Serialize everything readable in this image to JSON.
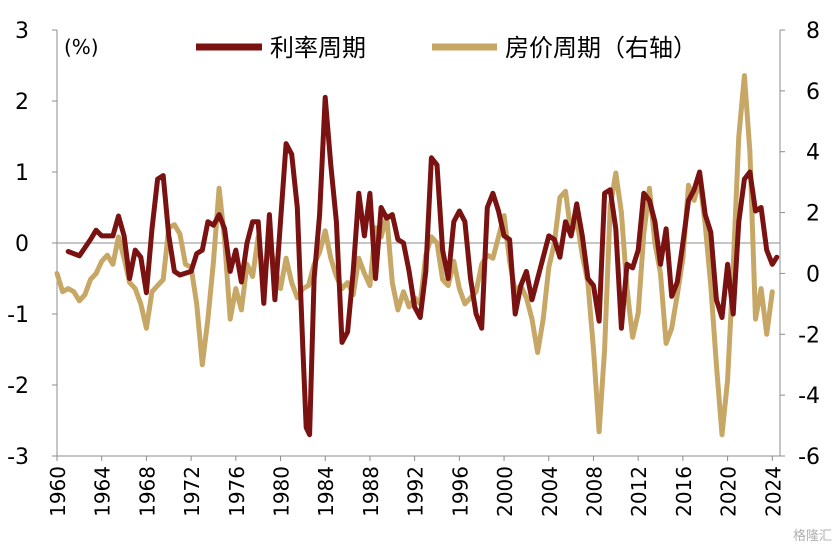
{
  "chart_data": {
    "type": "line",
    "unit_label": "(%)",
    "x_range": [
      1960,
      2024.6
    ],
    "x_ticks": [
      1960,
      1964,
      1968,
      1972,
      1976,
      1980,
      1984,
      1988,
      1992,
      1996,
      2000,
      2004,
      2008,
      2012,
      2016,
      2020,
      2024
    ],
    "y_left": {
      "range": [
        -3,
        3
      ],
      "ticks": [
        -3,
        -2,
        -1,
        0,
        1,
        2,
        3
      ]
    },
    "y_right": {
      "range": [
        -6,
        8
      ],
      "ticks": [
        -6,
        -4,
        -2,
        0,
        2,
        4,
        6,
        8
      ]
    },
    "grid": false,
    "zero_line": true,
    "legend_position": "top",
    "series": [
      {
        "name": "利率周期",
        "axis": "left",
        "color": "#7a1212",
        "points": [
          [
            1961.0,
            -0.12
          ],
          [
            1962.0,
            -0.18
          ],
          [
            1963.0,
            0.05
          ],
          [
            1963.5,
            0.18
          ],
          [
            1964.0,
            0.1
          ],
          [
            1965.0,
            0.1
          ],
          [
            1965.5,
            0.38
          ],
          [
            1966.0,
            0.1
          ],
          [
            1966.5,
            -0.5
          ],
          [
            1967.0,
            -0.1
          ],
          [
            1967.5,
            -0.2
          ],
          [
            1968.0,
            -0.7
          ],
          [
            1968.5,
            0.2
          ],
          [
            1969.0,
            0.9
          ],
          [
            1969.5,
            0.95
          ],
          [
            1970.0,
            0.1
          ],
          [
            1970.5,
            -0.4
          ],
          [
            1971.0,
            -0.45
          ],
          [
            1972.0,
            -0.4
          ],
          [
            1972.5,
            -0.15
          ],
          [
            1973.0,
            -0.1
          ],
          [
            1973.5,
            0.3
          ],
          [
            1974.0,
            0.25
          ],
          [
            1974.5,
            0.4
          ],
          [
            1975.0,
            0.2
          ],
          [
            1975.5,
            -0.4
          ],
          [
            1976.0,
            -0.1
          ],
          [
            1976.5,
            -0.55
          ],
          [
            1977.0,
            0.0
          ],
          [
            1977.5,
            0.3
          ],
          [
            1978.0,
            0.3
          ],
          [
            1978.5,
            -0.85
          ],
          [
            1979.0,
            0.4
          ],
          [
            1979.5,
            -0.8
          ],
          [
            1980.0,
            0.3
          ],
          [
            1980.5,
            1.4
          ],
          [
            1981.0,
            1.25
          ],
          [
            1981.5,
            0.5
          ],
          [
            1982.0,
            -1.5
          ],
          [
            1982.3,
            -2.6
          ],
          [
            1982.6,
            -2.7
          ],
          [
            1983.0,
            -0.5
          ],
          [
            1983.5,
            0.4
          ],
          [
            1984.0,
            2.05
          ],
          [
            1984.5,
            1.1
          ],
          [
            1985.0,
            0.3
          ],
          [
            1985.5,
            -1.4
          ],
          [
            1986.0,
            -1.25
          ],
          [
            1986.5,
            -0.4
          ],
          [
            1987.0,
            0.7
          ],
          [
            1987.5,
            0.1
          ],
          [
            1988.0,
            0.7
          ],
          [
            1988.5,
            -0.5
          ],
          [
            1989.0,
            0.5
          ],
          [
            1989.5,
            0.35
          ],
          [
            1990.0,
            0.4
          ],
          [
            1990.5,
            0.05
          ],
          [
            1991.0,
            0.0
          ],
          [
            1991.5,
            -0.4
          ],
          [
            1992.0,
            -0.9
          ],
          [
            1992.5,
            -1.05
          ],
          [
            1993.0,
            -0.4
          ],
          [
            1993.5,
            1.2
          ],
          [
            1994.0,
            1.1
          ],
          [
            1994.5,
            -0.1
          ],
          [
            1995.0,
            -0.5
          ],
          [
            1995.5,
            0.3
          ],
          [
            1996.0,
            0.45
          ],
          [
            1996.5,
            0.3
          ],
          [
            1997.0,
            -0.5
          ],
          [
            1997.5,
            -1.0
          ],
          [
            1998.0,
            -1.2
          ],
          [
            1998.5,
            0.5
          ],
          [
            1999.0,
            0.7
          ],
          [
            1999.5,
            0.45
          ],
          [
            2000.0,
            0.1
          ],
          [
            2000.5,
            0.05
          ],
          [
            2001.0,
            -1.0
          ],
          [
            2001.5,
            -0.6
          ],
          [
            2002.0,
            -0.4
          ],
          [
            2002.5,
            -0.8
          ],
          [
            2003.0,
            -0.5
          ],
          [
            2003.5,
            -0.2
          ],
          [
            2004.0,
            0.1
          ],
          [
            2004.5,
            0.05
          ],
          [
            2005.0,
            -0.2
          ],
          [
            2005.5,
            0.3
          ],
          [
            2006.0,
            0.1
          ],
          [
            2006.5,
            0.55
          ],
          [
            2007.0,
            0.1
          ],
          [
            2007.5,
            -0.5
          ],
          [
            2008.0,
            -0.6
          ],
          [
            2008.5,
            -1.1
          ],
          [
            2009.0,
            0.7
          ],
          [
            2009.5,
            0.75
          ],
          [
            2010.0,
            0.2
          ],
          [
            2010.5,
            -1.2
          ],
          [
            2011.0,
            -0.3
          ],
          [
            2011.5,
            -0.35
          ],
          [
            2012.0,
            -0.1
          ],
          [
            2012.5,
            0.7
          ],
          [
            2013.0,
            0.6
          ],
          [
            2013.5,
            0.3
          ],
          [
            2014.0,
            -0.3
          ],
          [
            2014.5,
            0.2
          ],
          [
            2015.0,
            -0.75
          ],
          [
            2015.5,
            -0.55
          ],
          [
            2016.0,
            0.0
          ],
          [
            2016.5,
            0.6
          ],
          [
            2017.0,
            0.75
          ],
          [
            2017.5,
            1.0
          ],
          [
            2018.0,
            0.4
          ],
          [
            2018.5,
            0.15
          ],
          [
            2019.0,
            -0.8
          ],
          [
            2019.5,
            -1.05
          ],
          [
            2020.0,
            -0.3
          ],
          [
            2020.5,
            -1.0
          ],
          [
            2021.0,
            0.3
          ],
          [
            2021.5,
            0.9
          ],
          [
            2022.0,
            1.0
          ],
          [
            2022.5,
            0.45
          ],
          [
            2023.0,
            0.5
          ],
          [
            2023.5,
            -0.1
          ],
          [
            2024.0,
            -0.3
          ],
          [
            2024.4,
            -0.2
          ]
        ]
      },
      {
        "name": "房价周期（右轴）",
        "axis": "right",
        "color": "#c7a766",
        "points": [
          [
            1960.0,
            0.0
          ],
          [
            1960.5,
            -0.6
          ],
          [
            1961.0,
            -0.5
          ],
          [
            1961.5,
            -0.6
          ],
          [
            1962.0,
            -0.9
          ],
          [
            1962.5,
            -0.7
          ],
          [
            1963.0,
            -0.2
          ],
          [
            1963.5,
            0.0
          ],
          [
            1964.0,
            0.4
          ],
          [
            1964.5,
            0.6
          ],
          [
            1965.0,
            0.3
          ],
          [
            1965.5,
            1.2
          ],
          [
            1966.0,
            0.5
          ],
          [
            1966.5,
            -0.3
          ],
          [
            1967.0,
            -0.5
          ],
          [
            1967.5,
            -1.0
          ],
          [
            1968.0,
            -1.8
          ],
          [
            1968.5,
            -0.6
          ],
          [
            1969.0,
            -0.4
          ],
          [
            1969.5,
            -0.2
          ],
          [
            1970.0,
            1.5
          ],
          [
            1970.5,
            1.6
          ],
          [
            1971.0,
            1.3
          ],
          [
            1971.5,
            0.3
          ],
          [
            1972.0,
            0.2
          ],
          [
            1972.5,
            -1.0
          ],
          [
            1973.0,
            -3.0
          ],
          [
            1973.5,
            -1.5
          ],
          [
            1974.0,
            0.4
          ],
          [
            1974.5,
            2.8
          ],
          [
            1975.0,
            1.1
          ],
          [
            1975.5,
            -1.5
          ],
          [
            1976.0,
            -0.5
          ],
          [
            1976.5,
            -1.2
          ],
          [
            1977.0,
            0.3
          ],
          [
            1977.5,
            -0.1
          ],
          [
            1978.0,
            1.2
          ],
          [
            1978.5,
            -0.2
          ],
          [
            1979.0,
            1.0
          ],
          [
            1979.5,
            0.2
          ],
          [
            1980.0,
            -0.5
          ],
          [
            1980.5,
            0.5
          ],
          [
            1981.0,
            -0.3
          ],
          [
            1981.5,
            -0.8
          ],
          [
            1982.0,
            -0.5
          ],
          [
            1982.5,
            -0.4
          ],
          [
            1983.0,
            0.3
          ],
          [
            1983.5,
            0.7
          ],
          [
            1984.0,
            1.4
          ],
          [
            1984.5,
            0.5
          ],
          [
            1985.0,
            -0.1
          ],
          [
            1985.5,
            -0.5
          ],
          [
            1986.0,
            -0.3
          ],
          [
            1986.5,
            -0.7
          ],
          [
            1987.0,
            0.5
          ],
          [
            1987.5,
            0.0
          ],
          [
            1988.0,
            -0.4
          ],
          [
            1988.5,
            1.5
          ],
          [
            1989.0,
            1.2
          ],
          [
            1989.5,
            1.9
          ],
          [
            1990.0,
            -0.3
          ],
          [
            1990.5,
            -1.2
          ],
          [
            1991.0,
            -0.6
          ],
          [
            1991.5,
            -1.1
          ],
          [
            1992.0,
            -0.8
          ],
          [
            1992.5,
            -1.0
          ],
          [
            1993.0,
            0.6
          ],
          [
            1993.5,
            1.2
          ],
          [
            1994.0,
            1.0
          ],
          [
            1994.5,
            -0.2
          ],
          [
            1995.0,
            -0.4
          ],
          [
            1995.5,
            0.4
          ],
          [
            1996.0,
            -0.5
          ],
          [
            1996.5,
            -1.0
          ],
          [
            1997.0,
            -0.8
          ],
          [
            1997.5,
            -0.6
          ],
          [
            1998.0,
            0.3
          ],
          [
            1998.5,
            0.6
          ],
          [
            1999.0,
            0.5
          ],
          [
            1999.5,
            1.2
          ],
          [
            2000.0,
            1.9
          ],
          [
            2000.5,
            0.4
          ],
          [
            2001.0,
            -0.6
          ],
          [
            2001.5,
            -0.4
          ],
          [
            2002.0,
            -0.8
          ],
          [
            2002.5,
            -1.5
          ],
          [
            2003.0,
            -2.6
          ],
          [
            2003.5,
            -1.5
          ],
          [
            2004.0,
            0.2
          ],
          [
            2004.5,
            1.0
          ],
          [
            2005.0,
            2.5
          ],
          [
            2005.5,
            2.7
          ],
          [
            2006.0,
            1.3
          ],
          [
            2006.5,
            1.8
          ],
          [
            2007.0,
            0.6
          ],
          [
            2007.5,
            -0.3
          ],
          [
            2008.0,
            -2.5
          ],
          [
            2008.5,
            -5.2
          ],
          [
            2009.0,
            -2.5
          ],
          [
            2009.5,
            2.2
          ],
          [
            2010.0,
            3.3
          ],
          [
            2010.5,
            2.0
          ],
          [
            2011.0,
            -0.5
          ],
          [
            2011.5,
            -2.1
          ],
          [
            2012.0,
            -1.3
          ],
          [
            2012.5,
            1.3
          ],
          [
            2013.0,
            2.8
          ],
          [
            2013.5,
            1.0
          ],
          [
            2014.0,
            0.0
          ],
          [
            2014.5,
            -2.3
          ],
          [
            2015.0,
            -1.8
          ],
          [
            2015.5,
            -0.7
          ],
          [
            2016.0,
            0.5
          ],
          [
            2016.5,
            2.9
          ],
          [
            2017.0,
            2.4
          ],
          [
            2017.5,
            3.1
          ],
          [
            2018.0,
            1.6
          ],
          [
            2018.5,
            -0.4
          ],
          [
            2019.0,
            -3.0
          ],
          [
            2019.5,
            -5.3
          ],
          [
            2020.0,
            -3.5
          ],
          [
            2020.5,
            0.2
          ],
          [
            2021.0,
            4.5
          ],
          [
            2021.5,
            6.5
          ],
          [
            2022.0,
            4.0
          ],
          [
            2022.5,
            -1.5
          ],
          [
            2023.0,
            -0.5
          ],
          [
            2023.5,
            -2.0
          ],
          [
            2024.0,
            -0.6
          ]
        ]
      }
    ],
    "watermark": "格隆汇"
  }
}
